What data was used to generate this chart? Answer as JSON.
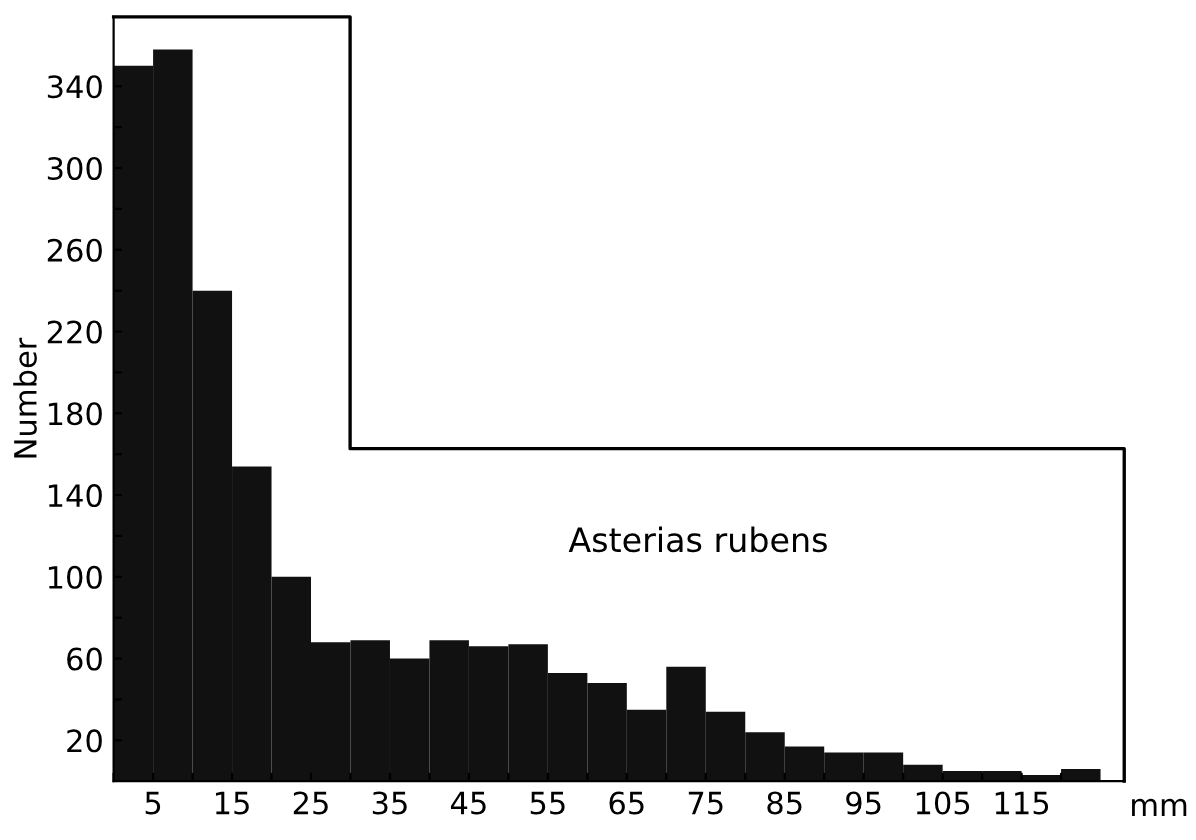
{
  "chart_data": {
    "type": "histogram",
    "ylabel": "Number",
    "xlabel": "mm",
    "annotations": [
      "Asterias rubens"
    ],
    "bins": [
      0,
      5,
      10,
      15,
      20,
      25,
      30,
      35,
      40,
      45,
      50,
      55,
      60,
      65,
      70,
      75,
      80,
      85,
      90,
      95,
      100,
      105,
      110,
      115,
      120,
      125
    ],
    "values": [
      350,
      358,
      240,
      154,
      100,
      68,
      69,
      60,
      69,
      66,
      67,
      53,
      48,
      35,
      56,
      34,
      24,
      17,
      14,
      14,
      8,
      5,
      5,
      3,
      6
    ],
    "color": "#111111",
    "xlim": [
      0,
      128
    ],
    "ylim": [
      0,
      374
    ],
    "xticks": [
      {
        "value": 0,
        "label": null
      },
      5,
      {
        "value": 10,
        "label": null
      },
      15,
      {
        "value": 20,
        "label": null
      },
      25,
      {
        "value": 30,
        "label": null
      },
      35,
      {
        "value": 40,
        "label": null
      },
      45,
      {
        "value": 50,
        "label": null
      },
      55,
      {
        "value": 60,
        "label": null
      },
      65,
      {
        "value": 70,
        "label": null
      },
      75,
      {
        "value": 80,
        "label": null
      },
      85,
      {
        "value": 90,
        "label": null
      },
      95,
      {
        "value": 100,
        "label": null
      },
      105,
      {
        "value": 110,
        "label": null
      },
      115,
      {
        "value": 120,
        "label": null
      }
    ],
    "yticks": [
      20,
      {
        "value": 40,
        "label": null
      },
      60,
      {
        "value": 80,
        "label": null
      },
      100,
      {
        "value": 120,
        "label": null
      },
      140,
      {
        "value": 160,
        "label": null
      },
      180,
      {
        "value": 200,
        "label": null
      },
      220,
      {
        "value": 240,
        "label": null
      },
      260,
      {
        "value": 280,
        "label": null
      },
      300,
      {
        "value": 320,
        "label": null
      },
      340
    ],
    "grid": false,
    "legend": false
  }
}
